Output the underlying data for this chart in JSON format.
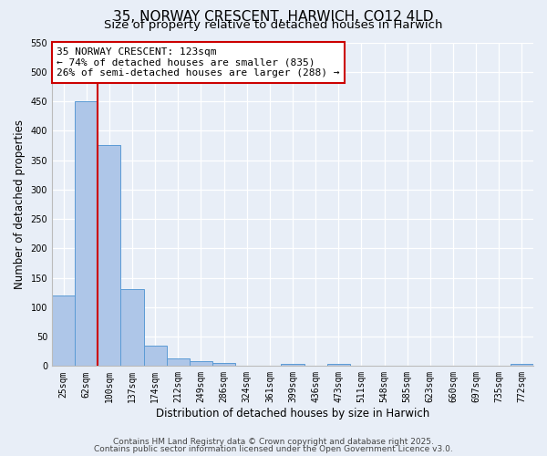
{
  "title": "35, NORWAY CRESCENT, HARWICH, CO12 4LD",
  "subtitle": "Size of property relative to detached houses in Harwich",
  "xlabel": "Distribution of detached houses by size in Harwich",
  "ylabel": "Number of detached properties",
  "categories": [
    "25sqm",
    "62sqm",
    "100sqm",
    "137sqm",
    "174sqm",
    "212sqm",
    "249sqm",
    "286sqm",
    "324sqm",
    "361sqm",
    "399sqm",
    "436sqm",
    "473sqm",
    "511sqm",
    "548sqm",
    "585sqm",
    "623sqm",
    "660sqm",
    "697sqm",
    "735sqm",
    "772sqm"
  ],
  "values": [
    120,
    450,
    375,
    130,
    35,
    13,
    8,
    5,
    0,
    0,
    3,
    0,
    3,
    0,
    0,
    0,
    0,
    0,
    0,
    0,
    4
  ],
  "bar_color": "#aec6e8",
  "bar_edge_color": "#5b9bd5",
  "background_color": "#e8eef7",
  "grid_color": "#ffffff",
  "vline_x": 1.5,
  "vline_color": "#cc0000",
  "annotation_line1": "35 NORWAY CRESCENT: 123sqm",
  "annotation_line2": "← 74% of detached houses are smaller (835)",
  "annotation_line3": "26% of semi-detached houses are larger (288) →",
  "annotation_box_color": "#ffffff",
  "annotation_box_edge": "#cc0000",
  "ylim": [
    0,
    550
  ],
  "yticks": [
    0,
    50,
    100,
    150,
    200,
    250,
    300,
    350,
    400,
    450,
    500,
    550
  ],
  "footer1": "Contains HM Land Registry data © Crown copyright and database right 2025.",
  "footer2": "Contains public sector information licensed under the Open Government Licence v3.0.",
  "title_fontsize": 11,
  "subtitle_fontsize": 9.5,
  "tick_fontsize": 7,
  "ylabel_fontsize": 8.5,
  "xlabel_fontsize": 8.5,
  "annotation_fontsize": 8,
  "footer_fontsize": 6.5
}
